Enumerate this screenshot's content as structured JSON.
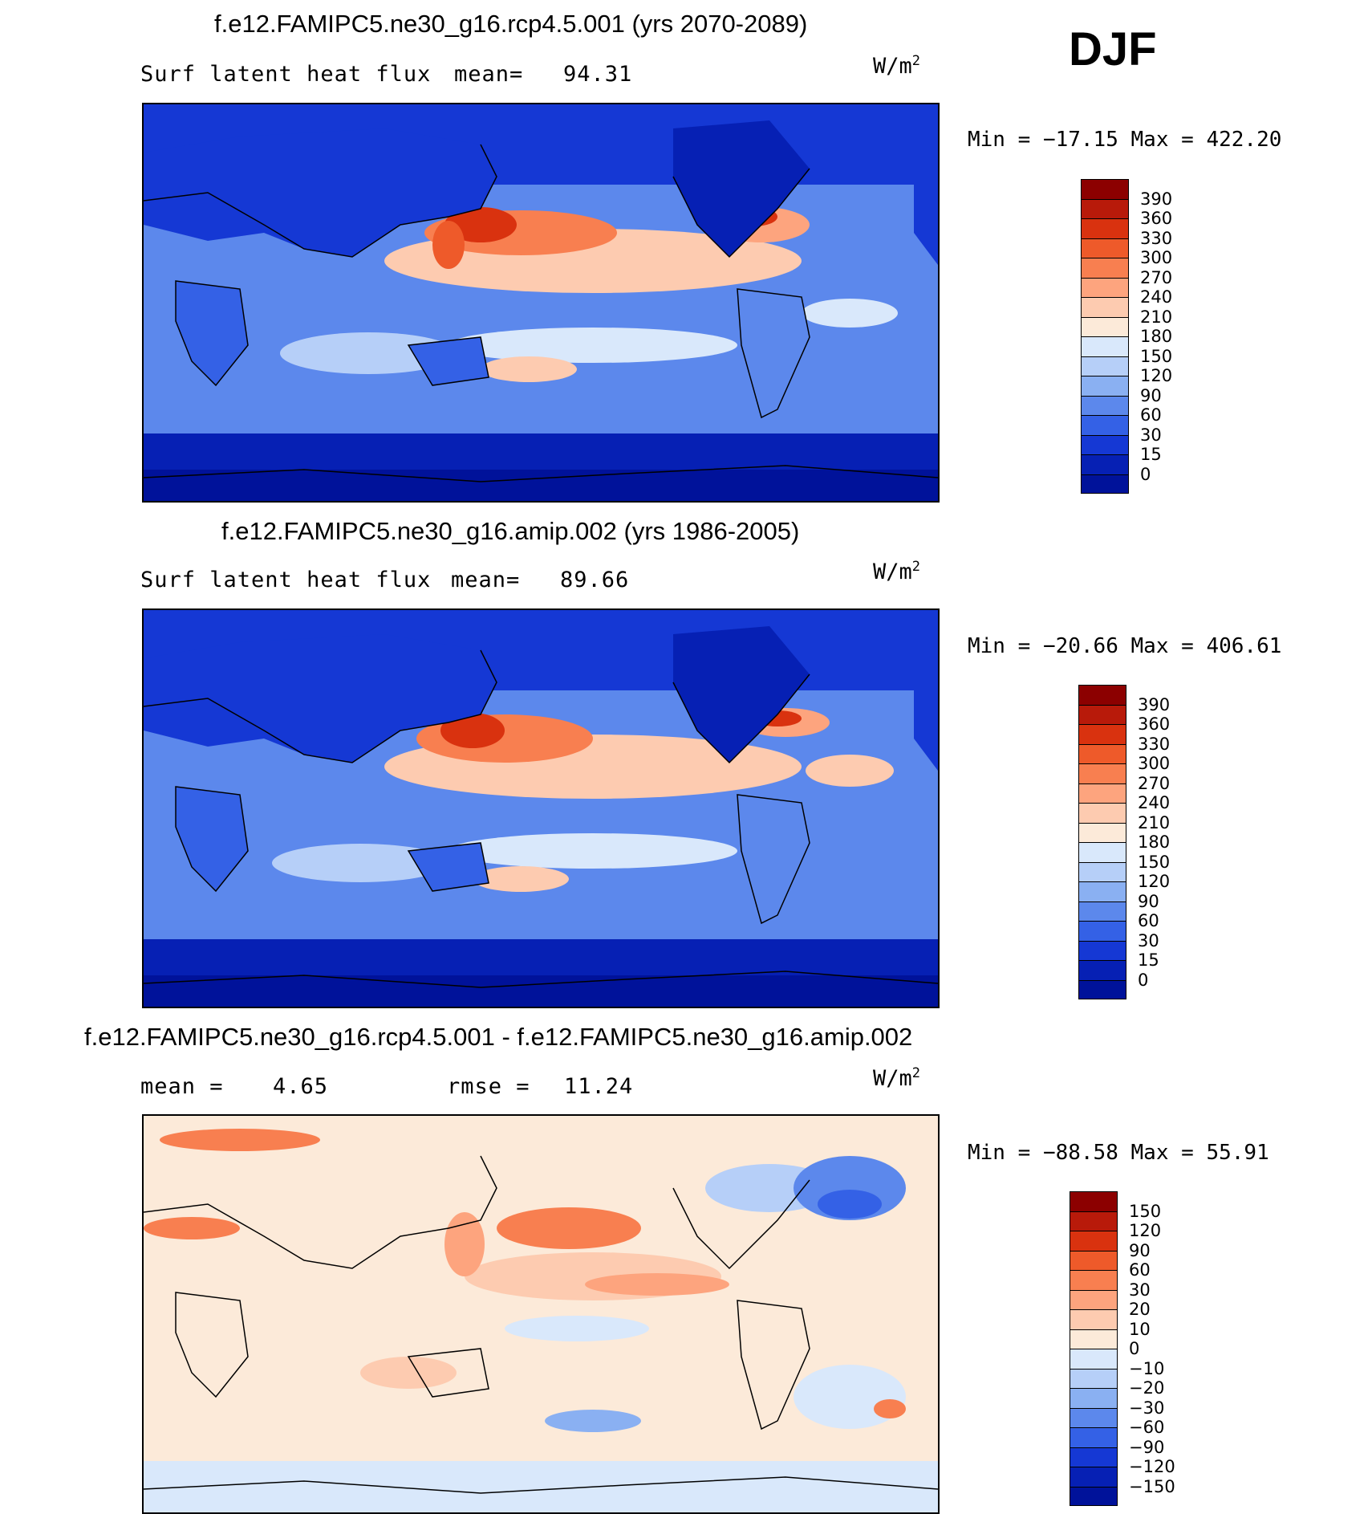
{
  "season": "DJF",
  "panels": [
    {
      "title": "f.e12.FAMIPC5.ne30_g16.rcp4.5.001 (yrs 2070-2089)",
      "variable": "Surf latent heat flux",
      "mean_label": "mean=",
      "mean": "94.31",
      "units_base": "W/m",
      "units_exp": "2",
      "min_label": "Min =",
      "min": "−17.15",
      "max_label": "Max =",
      "max": "422.20",
      "colorbar_labels": [
        "390",
        "360",
        "330",
        "300",
        "270",
        "240",
        "210",
        "180",
        "150",
        "120",
        "90",
        "60",
        "30",
        "15",
        "0"
      ],
      "colorbar_colors": [
        "#8c0000",
        "#b81a0a",
        "#d9320f",
        "#ee5a2a",
        "#f87f50",
        "#fda47e",
        "#fdcbb0",
        "#fcead9",
        "#d9e8fb",
        "#b6cff8",
        "#8ab0f2",
        "#5c88ec",
        "#3461e6",
        "#1538d4",
        "#0620b4",
        "#00129a"
      ]
    },
    {
      "title": "f.e12.FAMIPC5.ne30_g16.amip.002 (yrs 1986-2005)",
      "variable": "Surf latent heat flux",
      "mean_label": "mean=",
      "mean": "89.66",
      "units_base": "W/m",
      "units_exp": "2",
      "min_label": "Min =",
      "min": "−20.66",
      "max_label": "Max =",
      "max": "406.61",
      "colorbar_labels": [
        "390",
        "360",
        "330",
        "300",
        "270",
        "240",
        "210",
        "180",
        "150",
        "120",
        "90",
        "60",
        "30",
        "15",
        "0"
      ],
      "colorbar_colors": [
        "#8c0000",
        "#b81a0a",
        "#d9320f",
        "#ee5a2a",
        "#f87f50",
        "#fda47e",
        "#fdcbb0",
        "#fcead9",
        "#d9e8fb",
        "#b6cff8",
        "#8ab0f2",
        "#5c88ec",
        "#3461e6",
        "#1538d4",
        "#0620b4",
        "#00129a"
      ]
    },
    {
      "title": "f.e12.FAMIPC5.ne30_g16.rcp4.5.001 - f.e12.FAMIPC5.ne30_g16.amip.002",
      "mean_label": "mean =",
      "mean": "4.65",
      "rmse_label": "rmse =",
      "rmse": "11.24",
      "units_base": "W/m",
      "units_exp": "2",
      "min_label": "Min =",
      "min": "−88.58",
      "max_label": "Max =",
      "max": "55.91",
      "colorbar_labels": [
        "150",
        "120",
        "90",
        "60",
        "30",
        "20",
        "10",
        "0",
        "−10",
        "−20",
        "−30",
        "−60",
        "−90",
        "−120",
        "−150"
      ],
      "colorbar_colors": [
        "#8c0000",
        "#b81a0a",
        "#d9320f",
        "#ee5a2a",
        "#f87f50",
        "#fda47e",
        "#fdcbb0",
        "#fcead9",
        "#d9e8fb",
        "#b6cff8",
        "#8ab0f2",
        "#5c88ec",
        "#3461e6",
        "#1538d4",
        "#0620b4",
        "#00129a"
      ]
    }
  ]
}
